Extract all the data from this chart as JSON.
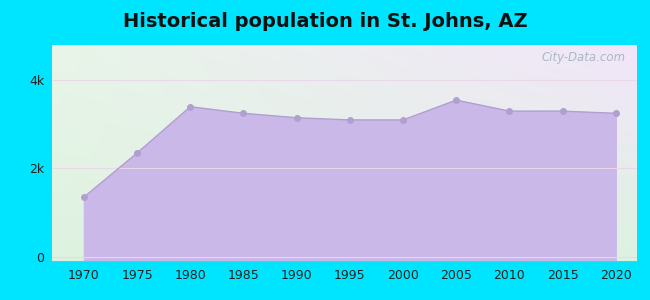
{
  "title": "Historical population in St. Johns, AZ",
  "years": [
    1970,
    1975,
    1980,
    1985,
    1990,
    1995,
    2000,
    2005,
    2010,
    2015,
    2020
  ],
  "population": [
    1350,
    2350,
    3400,
    3250,
    3150,
    3100,
    3100,
    3550,
    3300,
    3300,
    3250
  ],
  "fill_color": "#c9b8e8",
  "fill_alpha": 1.0,
  "line_color": "#b09fd0",
  "marker_color": "#b09fd0",
  "bg_outer": "#00e5ff",
  "grid_color": "#e8d8e8",
  "tick_color": "#222222",
  "title_fontsize": 14,
  "axis_label_fontsize": 9,
  "yticks": [
    0,
    2000,
    4000
  ],
  "ytick_labels": [
    "0",
    "2k",
    "4k"
  ],
  "xlim": [
    1967,
    2022
  ],
  "ylim": [
    -100,
    4800
  ],
  "watermark": "City-Data.com"
}
